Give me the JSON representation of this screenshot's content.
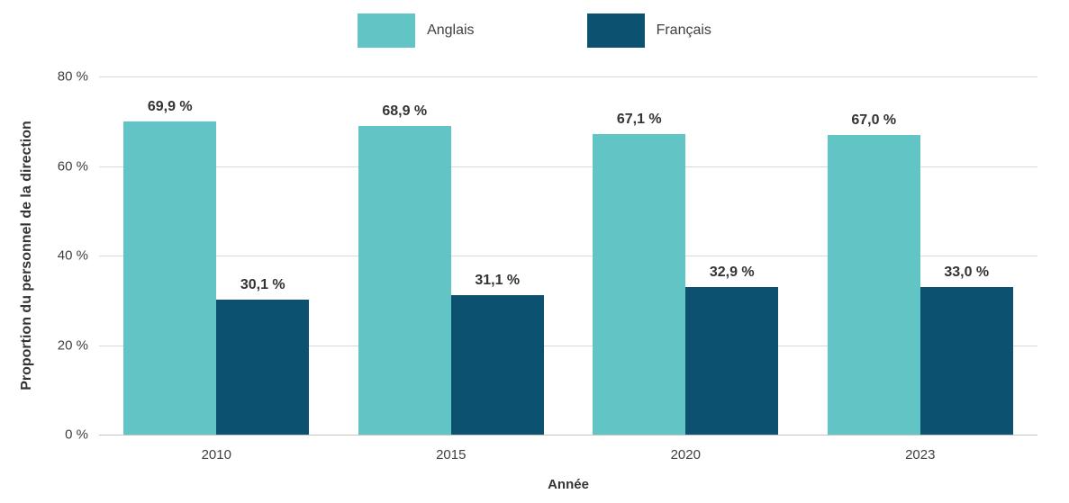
{
  "chart_data": {
    "type": "bar",
    "categories": [
      "2010",
      "2015",
      "2020",
      "2023"
    ],
    "series": [
      {
        "name": "Anglais",
        "color": "#62C5C5",
        "values": [
          69.9,
          68.9,
          67.1,
          67.0
        ],
        "value_labels": [
          "69,9 %",
          "68,9 %",
          "67,1 %",
          "67,0 %"
        ]
      },
      {
        "name": "Français",
        "color": "#0C5170",
        "values": [
          30.1,
          31.1,
          32.9,
          33.0
        ],
        "value_labels": [
          "30,1 %",
          "31,1 %",
          "32,9 %",
          "33,0 %"
        ]
      }
    ],
    "title": "",
    "xlabel": "Année",
    "ylabel": "Proportion du personnel de la direction",
    "ylim": [
      0,
      80
    ],
    "yticks": [
      0,
      20,
      40,
      60,
      80
    ],
    "ytick_labels": [
      "0 %",
      "20 %",
      "40 %",
      "60 %",
      "80 %"
    ],
    "grid": true,
    "legend_position": "top-center",
    "colors": {
      "grid": "#d9d9d9",
      "baseline": "#c3c3c3",
      "label_text": "#333333",
      "tick_text": "#404040"
    }
  }
}
